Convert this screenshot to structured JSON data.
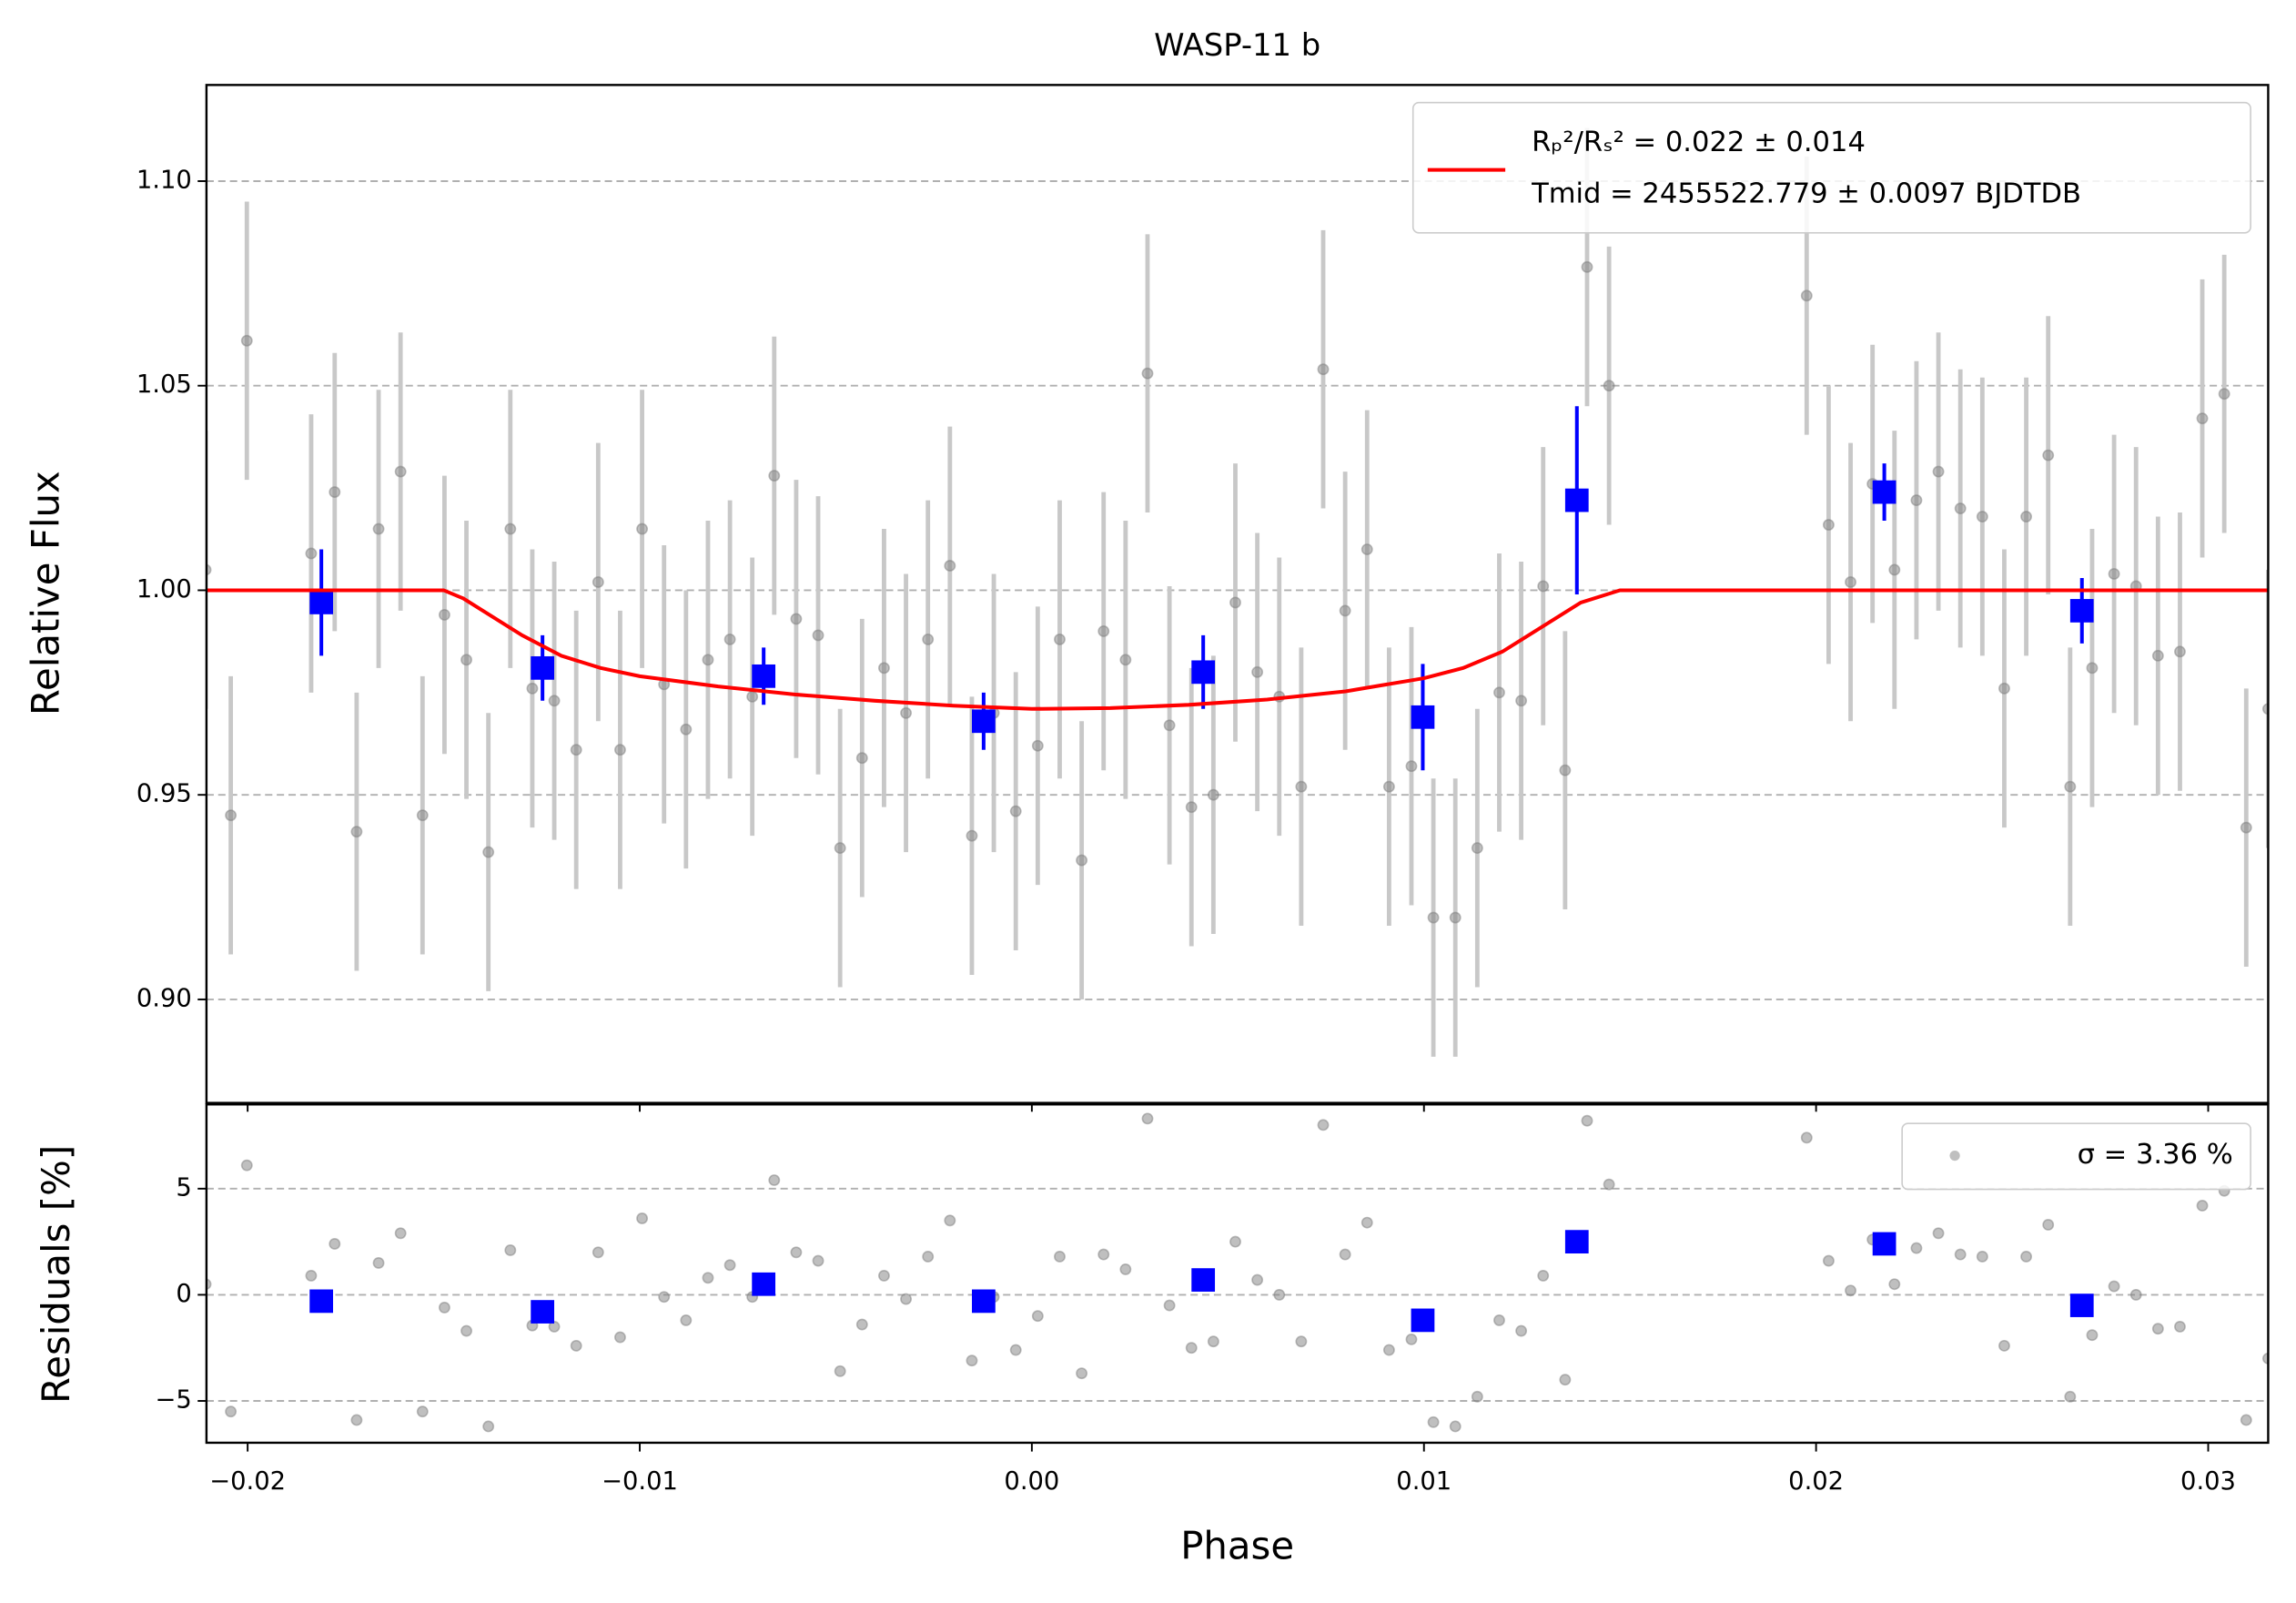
{
  "chart_data": [
    {
      "type": "scatter",
      "title": "WASP-11 b",
      "y_label": "Relative Flux",
      "xlim": [
        -0.02105,
        0.03153
      ],
      "ylim": [
        0.8747,
        1.1235
      ],
      "yticks": [
        {
          "value": 0.9,
          "label": "0.90"
        },
        {
          "value": 0.95,
          "label": "0.95"
        },
        {
          "value": 1.0,
          "label": "1.00"
        },
        {
          "value": 1.05,
          "label": "1.05"
        },
        {
          "value": 1.1,
          "label": "1.10"
        }
      ],
      "grid": true,
      "legend": "upper right",
      "series": [
        {
          "color": "#808080",
          "marker": "dot",
          "x": [
            -0.02107,
            -0.02043,
            -0.02002,
            -0.01838,
            -0.01778,
            -0.01722,
            -0.01666,
            -0.0161,
            -0.01554,
            -0.01498,
            -0.01442,
            -0.01386,
            -0.0133,
            -0.01274,
            -0.01218,
            -0.01162,
            -0.01106,
            -0.0105,
            -0.00994,
            -0.00938,
            -0.00882,
            -0.00826,
            -0.0077,
            -0.00713,
            -0.00657,
            -0.00601,
            -0.00545,
            -0.00489,
            -0.00433,
            -0.00377,
            -0.00321,
            -0.00265,
            -0.00209,
            -0.00153,
            -0.00097,
            -0.00041,
            0.00015,
            0.00071,
            0.00127,
            0.00183,
            0.00239,
            0.00295,
            0.00351,
            0.00407,
            0.00463,
            0.00519,
            0.00575,
            0.00631,
            0.00687,
            0.00743,
            0.00799,
            0.00855,
            0.00911,
            0.00968,
            0.01024,
            0.0108,
            0.01136,
            0.01192,
            0.01248,
            0.01304,
            0.0136,
            0.01416,
            0.01472,
            0.01976,
            0.02032,
            0.02088,
            0.02144,
            0.022,
            0.02256,
            0.02312,
            0.02368,
            0.02424,
            0.0248,
            0.02536,
            0.02592,
            0.02648,
            0.02704,
            0.0276,
            0.02816,
            0.02872,
            0.02928,
            0.02985,
            0.03041,
            0.03097,
            0.03153
          ],
          "values": [
            1.005,
            0.945,
            1.061,
            1.009,
            1.024,
            0.941,
            1.015,
            1.029,
            0.945,
            0.994,
            0.983,
            0.936,
            1.015,
            0.976,
            0.973,
            0.961,
            1.002,
            0.961,
            1.015,
            0.977,
            0.966,
            0.983,
            0.988,
            0.974,
            1.028,
            0.993,
            0.989,
            0.937,
            0.959,
            0.981,
            0.97,
            0.988,
            1.006,
            0.94,
            0.97,
            0.946,
            0.962,
            0.988,
            0.934,
            0.99,
            0.983,
            1.053,
            0.967,
            0.947,
            0.95,
            0.997,
            0.98,
            0.974,
            0.952,
            1.054,
            0.995,
            1.01,
            0.952,
            0.957,
            0.92,
            0.92,
            0.937,
            0.975,
            0.973,
            1.001,
            0.956,
            1.079,
            1.05,
            1.072,
            1.016,
            1.002,
            1.026,
            1.005,
            1.022,
            1.029,
            1.02,
            1.018,
            0.976,
            1.018,
            1.033,
            0.952,
            0.981,
            1.004,
            1.001,
            0.984,
            0.985,
            1.042,
            1.048,
            0.942,
            0.971
          ],
          "errors": [
            0.034,
            0.034,
            0.034,
            0.034,
            0.034,
            0.034,
            0.034,
            0.034,
            0.034,
            0.034,
            0.034,
            0.034,
            0.034,
            0.034,
            0.034,
            0.034,
            0.034,
            0.034,
            0.034,
            0.034,
            0.034,
            0.034,
            0.034,
            0.034,
            0.034,
            0.034,
            0.034,
            0.034,
            0.034,
            0.034,
            0.034,
            0.034,
            0.034,
            0.034,
            0.034,
            0.034,
            0.034,
            0.034,
            0.034,
            0.034,
            0.034,
            0.034,
            0.034,
            0.034,
            0.034,
            0.034,
            0.034,
            0.034,
            0.034,
            0.034,
            0.034,
            0.034,
            0.034,
            0.034,
            0.034,
            0.034,
            0.034,
            0.034,
            0.034,
            0.034,
            0.034,
            0.034,
            0.034,
            0.034,
            0.034,
            0.034,
            0.034,
            0.034,
            0.034,
            0.034,
            0.034,
            0.034,
            0.034,
            0.034,
            0.034,
            0.034,
            0.034,
            0.034,
            0.034,
            0.034,
            0.034,
            0.034,
            0.034,
            0.034,
            0.034
          ]
        },
        {
          "color": "#0000ff",
          "marker": "square",
          "x": [
            -0.01812,
            -0.01248,
            -0.00684,
            -0.00123,
            0.00437,
            0.00997,
            0.0139,
            0.02174,
            0.02678
          ],
          "values": [
            0.997,
            0.981,
            0.979,
            0.968,
            0.98,
            0.969,
            1.022,
            1.024,
            0.995
          ],
          "errors": [
            0.013,
            0.008,
            0.007,
            0.007,
            0.009,
            0.013,
            0.023,
            0.007,
            0.008
          ]
        },
        {
          "color": "#ff0000",
          "marker": "line",
          "name": [
            "Rₚ²/Rₛ² = 0.022 ± 0.014",
            "Tmid = 2455522.779 ± 0.0097 BJDTDB"
          ],
          "x": [
            -0.02105,
            -0.015,
            -0.0145,
            -0.014,
            -0.013,
            -0.012,
            -0.011,
            -0.01,
            -0.008,
            -0.006,
            -0.004,
            -0.002,
            0,
            0.002,
            0.004,
            0.006,
            0.008,
            0.01,
            0.011,
            0.012,
            0.013,
            0.014,
            0.015,
            0.03153
          ],
          "values": [
            1.0,
            1.0,
            0.998,
            0.995,
            0.989,
            0.984,
            0.981,
            0.979,
            0.9765,
            0.9745,
            0.973,
            0.9718,
            0.971,
            0.9712,
            0.972,
            0.9733,
            0.9753,
            0.9785,
            0.981,
            0.985,
            0.991,
            0.997,
            1.0,
            1.0
          ]
        }
      ]
    },
    {
      "type": "scatter",
      "x_label": "Phase",
      "y_label": "Residuals [%]",
      "xlim": [
        -0.02105,
        0.03153
      ],
      "ylim": [
        -6.97,
        8.97
      ],
      "xticks": [
        {
          "value": -0.02,
          "label": "−0.02"
        },
        {
          "value": -0.01,
          "label": "−0.01"
        },
        {
          "value": 0,
          "label": "0.00"
        },
        {
          "value": 0.01,
          "label": "0.01"
        },
        {
          "value": 0.02,
          "label": "0.02"
        },
        {
          "value": 0.03,
          "label": "0.03"
        }
      ],
      "yticks": [
        5,
        0,
        {
          "value": -5,
          "label": "−5"
        }
      ],
      "grid": true,
      "legend": "upper right",
      "series": [
        {
          "color": "#808080",
          "marker": "dot",
          "name": "σ = 3.36 %",
          "x": [
            -0.02107,
            -0.02043,
            -0.02002,
            -0.01838,
            -0.01778,
            -0.01722,
            -0.01666,
            -0.0161,
            -0.01554,
            -0.01498,
            -0.01442,
            -0.01386,
            -0.0133,
            -0.01274,
            -0.01218,
            -0.01162,
            -0.01106,
            -0.0105,
            -0.00994,
            -0.00938,
            -0.00882,
            -0.00826,
            -0.0077,
            -0.00713,
            -0.00657,
            -0.00601,
            -0.00545,
            -0.00489,
            -0.00433,
            -0.00377,
            -0.00321,
            -0.00265,
            -0.00209,
            -0.00153,
            -0.00097,
            -0.00041,
            0.00015,
            0.00071,
            0.00127,
            0.00183,
            0.00239,
            0.00295,
            0.00351,
            0.00407,
            0.00463,
            0.00519,
            0.00575,
            0.00631,
            0.00687,
            0.00743,
            0.00799,
            0.00855,
            0.00911,
            0.00968,
            0.01024,
            0.0108,
            0.01136,
            0.01192,
            0.01248,
            0.01304,
            0.0136,
            0.01416,
            0.01472,
            0.01976,
            0.02032,
            0.02088,
            0.02144,
            0.022,
            0.02256,
            0.02312,
            0.02368,
            0.02424,
            0.0248,
            0.02536,
            0.02592,
            0.02648,
            0.02704,
            0.0276,
            0.02816,
            0.02872,
            0.02928,
            0.02985,
            0.03041,
            0.03097,
            0.03153
          ],
          "values": [
            0.5,
            -5.5,
            6.1,
            0.9,
            2.4,
            -5.9,
            1.5,
            2.9,
            -5.5,
            -0.6,
            -1.7,
            -6.2,
            2.1,
            -1.45,
            -1.5,
            -2.4,
            2.0,
            -2.0,
            3.6,
            -0.1,
            -1.2,
            0.8,
            1.4,
            -0.1,
            5.4,
            2.0,
            1.6,
            -3.6,
            -1.4,
            0.9,
            -0.2,
            1.8,
            3.5,
            -3.1,
            -0.1,
            -2.6,
            -1.0,
            1.8,
            -3.7,
            1.9,
            1.2,
            8.3,
            -0.5,
            -2.5,
            -2.2,
            2.5,
            0.7,
            0,
            -2.2,
            8.0,
            1.9,
            3.4,
            -2.6,
            -2.1,
            -6.0,
            -6.2,
            -4.8,
            -1.2,
            -1.7,
            0.9,
            -4.0,
            8.2,
            5.2,
            7.4,
            1.6,
            0.2,
            2.6,
            0.5,
            2.2,
            2.9,
            1.9,
            1.8,
            -2.4,
            1.8,
            3.3,
            -4.8,
            -1.9,
            0.4,
            0,
            -1.6,
            -1.5,
            4.2,
            4.9,
            -5.9,
            -3.0
          ]
        },
        {
          "color": "#0000ff",
          "marker": "square",
          "x": [
            -0.01812,
            -0.01248,
            -0.00684,
            -0.00123,
            0.00437,
            0.00997,
            0.0139,
            0.02174,
            0.02678
          ],
          "values": [
            -0.3,
            -0.8,
            0.5,
            -0.3,
            0.7,
            -1.2,
            2.5,
            2.4,
            -0.5
          ]
        }
      ]
    }
  ]
}
